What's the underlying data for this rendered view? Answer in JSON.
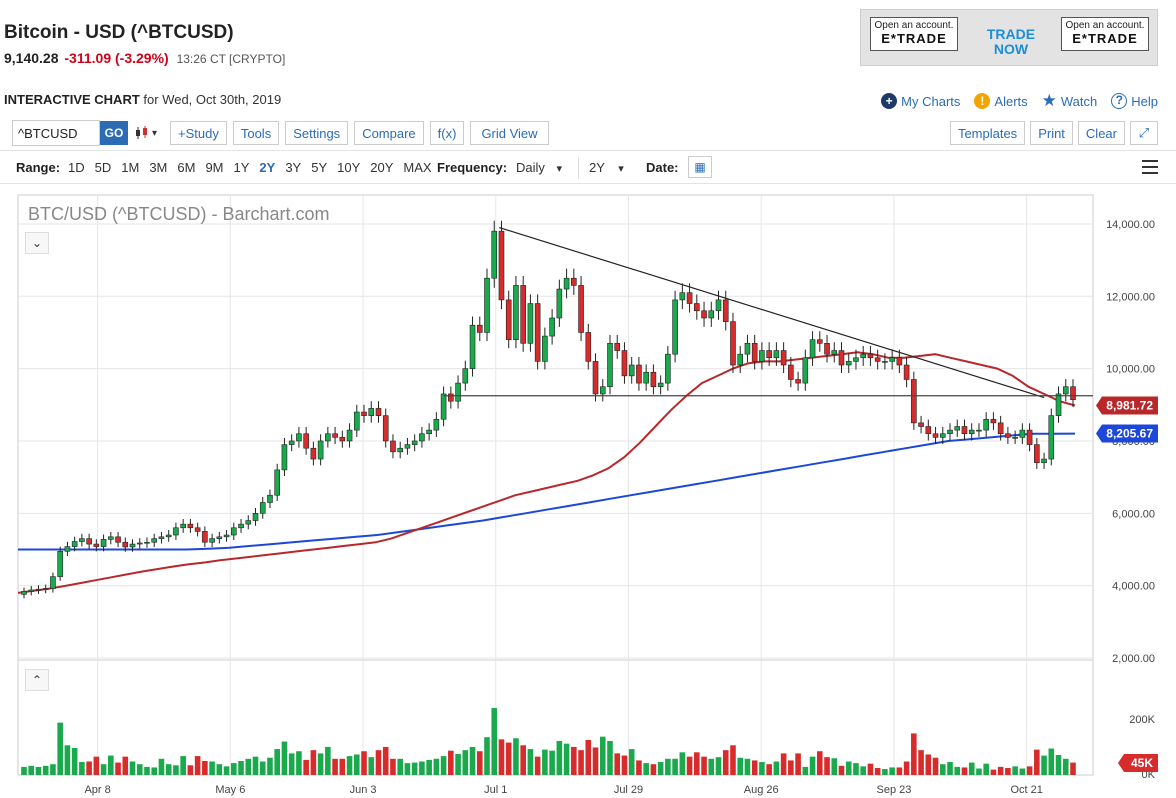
{
  "header": {
    "title": "Bitcoin - USD (^BTCUSD)",
    "price": "9,140.28",
    "change": "-311.09 (-3.29%)",
    "meta": "13:26 CT [CRYPTO]"
  },
  "ad": {
    "left_line1": "Open an account.",
    "left_line2": "E*TRADE",
    "center": "TRADE NOW",
    "right_line1": "Open an account.",
    "right_line2": "E*TRADE"
  },
  "chart_header": {
    "bold": "INTERACTIVE CHART",
    "date": "for Wed, Oct 30th, 2019"
  },
  "toplinks": {
    "my_charts": "My Charts",
    "alerts": "Alerts",
    "watch": "Watch",
    "help": "Help"
  },
  "toolbar": {
    "symbol": "^BTCUSD",
    "go": "GO",
    "study": "+Study",
    "tools": "Tools",
    "settings": "Settings",
    "compare": "Compare",
    "fx": "f(x)",
    "grid_view": "Grid View",
    "templates": "Templates",
    "print": "Print",
    "clear": "Clear"
  },
  "rangebar": {
    "range_label": "Range:",
    "ranges": [
      "1D",
      "5D",
      "1M",
      "3M",
      "6M",
      "9M",
      "1Y",
      "2Y",
      "3Y",
      "5Y",
      "10Y",
      "20Y",
      "MAX"
    ],
    "selected_range": "2Y",
    "frequency_label": "Frequency:",
    "frequency": "Daily",
    "period": "2Y",
    "date_label": "Date:"
  },
  "colors": {
    "up": "#1aa94c",
    "down": "#d62c2c",
    "ma50": "#b8282b",
    "ma200": "#1c47d9",
    "accent": "#2b6cb5"
  },
  "chart_data": {
    "type": "candlestick",
    "title": "BTC/USD (^BTCUSD) - Barchart.com",
    "y_ticks": [
      "14,000.00",
      "12,000.00",
      "10,000.00",
      "8,000.00",
      "6,000.00",
      "4,000.00",
      "2,000.00"
    ],
    "ylim": [
      2000,
      14800
    ],
    "x_ticks": [
      "Apr 8",
      "May 6",
      "Jun 3",
      "Jul 1",
      "Jul 29",
      "Aug 26",
      "Sep 23",
      "Oct 21"
    ],
    "grid": true,
    "annotations": {
      "ma50_label": "8,981.72",
      "ma200_label": "8,205.67",
      "volume_label": "45K"
    },
    "close": [
      3840,
      3880,
      3900,
      3920,
      4250,
      4950,
      5080,
      5220,
      5300,
      5150,
      5080,
      5280,
      5350,
      5200,
      5070,
      5150,
      5180,
      5200,
      5300,
      5350,
      5400,
      5600,
      5700,
      5600,
      5500,
      5200,
      5300,
      5350,
      5400,
      5600,
      5700,
      5800,
      6000,
      6300,
      6500,
      7200,
      7900,
      8000,
      8200,
      7800,
      7500,
      8000,
      8200,
      8100,
      8000,
      8300,
      8800,
      8700,
      8900,
      8700,
      8000,
      7700,
      7800,
      7900,
      8000,
      8200,
      8300,
      8600,
      9300,
      9100,
      9600,
      10000,
      11200,
      11000,
      12500,
      13800,
      11900,
      10800,
      12300,
      10700,
      11800,
      10200,
      10900,
      11400,
      12200,
      12500,
      12300,
      11000,
      10200,
      9300,
      9500,
      10700,
      10500,
      9800,
      10100,
      9600,
      9900,
      9500,
      9600,
      10400,
      11900,
      12100,
      11800,
      11600,
      11400,
      11600,
      11900,
      11300,
      10100,
      10400,
      10700,
      10200,
      10500,
      10300,
      10500,
      10100,
      9700,
      9600,
      10300,
      10800,
      10700,
      10400,
      10500,
      10100,
      10200,
      10300,
      10400,
      10300,
      10200,
      10200,
      10300,
      10100,
      9700,
      8500,
      8400,
      8200,
      8100,
      8200,
      8300,
      8400,
      8200,
      8300,
      8300,
      8600,
      8500,
      8200,
      8100,
      8100,
      8300,
      7900,
      7400,
      7500,
      8700,
      9300,
      9500,
      9140
    ],
    "volume_levels": [
      0.15,
      0.17,
      0.15,
      0.17,
      0.2,
      0.97,
      0.55,
      0.5,
      0.24,
      0.25,
      0.34,
      0.2,
      0.36,
      0.23,
      0.34,
      0.25,
      0.2,
      0.15,
      0.14,
      0.3,
      0.2,
      0.18,
      0.35,
      0.18,
      0.35,
      0.26,
      0.25,
      0.2,
      0.16,
      0.22,
      0.26,
      0.3,
      0.34,
      0.25,
      0.32,
      0.48,
      0.62,
      0.4,
      0.44,
      0.28,
      0.46,
      0.4,
      0.52,
      0.3,
      0.3,
      0.35,
      0.38,
      0.44,
      0.33,
      0.46,
      0.52,
      0.3,
      0.3,
      0.22,
      0.23,
      0.25,
      0.28,
      0.3,
      0.35,
      0.45,
      0.39,
      0.46,
      0.52,
      0.44,
      0.7,
      1.24,
      0.66,
      0.6,
      0.68,
      0.55,
      0.48,
      0.34,
      0.47,
      0.45,
      0.63,
      0.58,
      0.52,
      0.46,
      0.65,
      0.51,
      0.71,
      0.63,
      0.4,
      0.36,
      0.48,
      0.27,
      0.22,
      0.2,
      0.24,
      0.3,
      0.3,
      0.42,
      0.34,
      0.42,
      0.34,
      0.3,
      0.33,
      0.46,
      0.55,
      0.32,
      0.3,
      0.27,
      0.24,
      0.2,
      0.25,
      0.4,
      0.27,
      0.4,
      0.15,
      0.34,
      0.44,
      0.33,
      0.31,
      0.17,
      0.25,
      0.22,
      0.16,
      0.21,
      0.13,
      0.11,
      0.14,
      0.14,
      0.25,
      0.77,
      0.46,
      0.38,
      0.32,
      0.2,
      0.24,
      0.15,
      0.14,
      0.23,
      0.12,
      0.21,
      0.1,
      0.15,
      0.13,
      0.16,
      0.12,
      0.16,
      0.47,
      0.36,
      0.49,
      0.37,
      0.3,
      0.23
    ],
    "ma50_levels": [
      3800,
      3860,
      3920,
      3990,
      4070,
      4150,
      4230,
      4310,
      4390,
      4460,
      4530,
      4590,
      4640,
      4700,
      4750,
      4800,
      4850,
      4900,
      4950,
      5000,
      5050,
      5100,
      5150,
      5200,
      5300,
      5450,
      5600,
      5750,
      5900,
      6050,
      6200,
      6350,
      6500,
      6600,
      6700,
      6800,
      6900,
      7050,
      7250,
      7550,
      7950,
      8400,
      8850,
      9250,
      9600,
      9800,
      10000,
      10150,
      10200,
      10200,
      10250,
      10300,
      10350,
      10400,
      10450,
      10400,
      10300,
      10300,
      10350,
      10400,
      10300,
      10200,
      10100,
      10000,
      9800,
      9500,
      9300,
      9100,
      8981
    ],
    "ma200_levels": [
      5000,
      5000,
      5000,
      5000,
      5000,
      5000,
      5000,
      5000,
      5000,
      5020,
      5050,
      5100,
      5150,
      5200,
      5250,
      5300,
      5350,
      5400,
      5480,
      5560,
      5640,
      5720,
      5800,
      5900,
      6000,
      6100,
      6200,
      6300,
      6400,
      6500,
      6600,
      6700,
      6800,
      6900,
      7000,
      7100,
      7200,
      7300,
      7400,
      7500,
      7600,
      7700,
      7800,
      7900,
      8000,
      8050,
      8100,
      8150,
      8200,
      8200,
      8205
    ],
    "trendline": {
      "from_value": 13900,
      "to_value": 9200
    },
    "support_line_value": 9250
  }
}
